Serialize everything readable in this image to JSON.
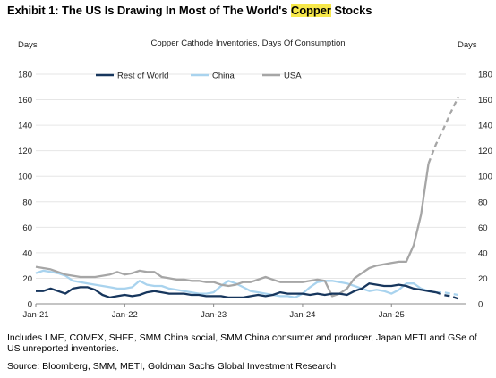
{
  "title_prefix": "Exhibit 1: The US Is Drawing In Most of The World's ",
  "title_highlight": "Copper",
  "title_suffix": " Stocks",
  "footnote": "Includes LME, COMEX, SHFE, SMM China social, SMM China consumer and producer, Japan METI and GSe of US unreported inventories.",
  "source": "Source: Bloomberg, SMM, METI, Goldman Sachs Global Investment Research",
  "colors": {
    "rest_of_world": "#17365d",
    "china": "#a9d3ee",
    "usa": "#a6a6a6"
  },
  "chart_data": {
    "type": "line",
    "subtitle": "Copper Cathode Inventories, Days Of Consumption",
    "ylabel_left": "Days",
    "ylabel_right": "Days",
    "ylim": [
      0,
      180
    ],
    "yticks": [
      "0",
      "20",
      "40",
      "60",
      "80",
      "100",
      "120",
      "140",
      "160",
      "180"
    ],
    "xticks": [
      "Jan-21",
      "Jan-22",
      "Jan-23",
      "Jan-24",
      "Jan-25"
    ],
    "legend_position": "top",
    "series": [
      {
        "name": "Rest of World",
        "values": [
          [
            "2021-01",
            10
          ],
          [
            "2021-02",
            10
          ],
          [
            "2021-03",
            12
          ],
          [
            "2021-04",
            10
          ],
          [
            "2021-05",
            8
          ],
          [
            "2021-06",
            12
          ],
          [
            "2021-07",
            13
          ],
          [
            "2021-08",
            13
          ],
          [
            "2021-09",
            11
          ],
          [
            "2021-10",
            7
          ],
          [
            "2021-11",
            5
          ],
          [
            "2021-12",
            6
          ],
          [
            "2022-01",
            7
          ],
          [
            "2022-02",
            6
          ],
          [
            "2022-03",
            7
          ],
          [
            "2022-04",
            9
          ],
          [
            "2022-05",
            10
          ],
          [
            "2022-06",
            9
          ],
          [
            "2022-07",
            8
          ],
          [
            "2022-08",
            8
          ],
          [
            "2022-09",
            8
          ],
          [
            "2022-10",
            7
          ],
          [
            "2022-11",
            7
          ],
          [
            "2022-12",
            6
          ],
          [
            "2023-01",
            6
          ],
          [
            "2023-02",
            6
          ],
          [
            "2023-03",
            5
          ],
          [
            "2023-04",
            5
          ],
          [
            "2023-05",
            5
          ],
          [
            "2023-06",
            6
          ],
          [
            "2023-07",
            7
          ],
          [
            "2023-08",
            6
          ],
          [
            "2023-09",
            7
          ],
          [
            "2023-10",
            9
          ],
          [
            "2023-11",
            8
          ],
          [
            "2023-12",
            8
          ],
          [
            "2024-01",
            8
          ],
          [
            "2024-02",
            7
          ],
          [
            "2024-03",
            8
          ],
          [
            "2024-04",
            7
          ],
          [
            "2024-05",
            8
          ],
          [
            "2024-06",
            8
          ],
          [
            "2024-07",
            7
          ],
          [
            "2024-08",
            10
          ],
          [
            "2024-09",
            12
          ],
          [
            "2024-10",
            16
          ],
          [
            "2024-11",
            15
          ],
          [
            "2024-12",
            14
          ],
          [
            "2025-01",
            14
          ],
          [
            "2025-02",
            15
          ],
          [
            "2025-03",
            14
          ],
          [
            "2025-04",
            12
          ],
          [
            "2025-05",
            11
          ],
          [
            "2025-06",
            10
          ],
          [
            "2025-07",
            9
          ]
        ],
        "projection": [
          [
            "2025-07",
            9
          ],
          [
            "2025-08",
            7
          ],
          [
            "2025-09",
            6
          ],
          [
            "2025-10",
            4
          ]
        ]
      },
      {
        "name": "China",
        "values": [
          [
            "2021-01",
            24
          ],
          [
            "2021-02",
            26
          ],
          [
            "2021-03",
            25
          ],
          [
            "2021-04",
            24
          ],
          [
            "2021-05",
            22
          ],
          [
            "2021-06",
            18
          ],
          [
            "2021-07",
            17
          ],
          [
            "2021-08",
            16
          ],
          [
            "2021-09",
            15
          ],
          [
            "2021-10",
            14
          ],
          [
            "2021-11",
            13
          ],
          [
            "2021-12",
            12
          ],
          [
            "2022-01",
            12
          ],
          [
            "2022-02",
            13
          ],
          [
            "2022-03",
            18
          ],
          [
            "2022-04",
            15
          ],
          [
            "2022-05",
            14
          ],
          [
            "2022-06",
            14
          ],
          [
            "2022-07",
            12
          ],
          [
            "2022-08",
            11
          ],
          [
            "2022-09",
            10
          ],
          [
            "2022-10",
            9
          ],
          [
            "2022-11",
            8
          ],
          [
            "2022-12",
            8
          ],
          [
            "2023-01",
            9
          ],
          [
            "2023-02",
            14
          ],
          [
            "2023-03",
            18
          ],
          [
            "2023-04",
            16
          ],
          [
            "2023-05",
            13
          ],
          [
            "2023-06",
            10
          ],
          [
            "2023-07",
            9
          ],
          [
            "2023-08",
            8
          ],
          [
            "2023-09",
            7
          ],
          [
            "2023-10",
            6
          ],
          [
            "2023-11",
            6
          ],
          [
            "2023-12",
            5
          ],
          [
            "2024-01",
            8
          ],
          [
            "2024-02",
            13
          ],
          [
            "2024-03",
            17
          ],
          [
            "2024-04",
            18
          ],
          [
            "2024-05",
            18
          ],
          [
            "2024-06",
            17
          ],
          [
            "2024-07",
            16
          ],
          [
            "2024-08",
            14
          ],
          [
            "2024-09",
            12
          ],
          [
            "2024-10",
            10
          ],
          [
            "2024-11",
            11
          ],
          [
            "2024-12",
            10
          ],
          [
            "2025-01",
            8
          ],
          [
            "2025-02",
            11
          ],
          [
            "2025-03",
            16
          ],
          [
            "2025-04",
            16
          ],
          [
            "2025-05",
            12
          ],
          [
            "2025-06",
            10
          ],
          [
            "2025-07",
            9
          ]
        ],
        "projection": [
          [
            "2025-07",
            9
          ],
          [
            "2025-08",
            9
          ],
          [
            "2025-09",
            8
          ],
          [
            "2025-10",
            7
          ]
        ]
      },
      {
        "name": "USA",
        "values": [
          [
            "2021-01",
            29
          ],
          [
            "2021-02",
            28
          ],
          [
            "2021-03",
            27
          ],
          [
            "2021-04",
            25
          ],
          [
            "2021-05",
            23
          ],
          [
            "2021-06",
            22
          ],
          [
            "2021-07",
            21
          ],
          [
            "2021-08",
            21
          ],
          [
            "2021-09",
            21
          ],
          [
            "2021-10",
            22
          ],
          [
            "2021-11",
            23
          ],
          [
            "2021-12",
            25
          ],
          [
            "2022-01",
            23
          ],
          [
            "2022-02",
            24
          ],
          [
            "2022-03",
            26
          ],
          [
            "2022-04",
            25
          ],
          [
            "2022-05",
            25
          ],
          [
            "2022-06",
            21
          ],
          [
            "2022-07",
            20
          ],
          [
            "2022-08",
            19
          ],
          [
            "2022-09",
            19
          ],
          [
            "2022-10",
            18
          ],
          [
            "2022-11",
            18
          ],
          [
            "2022-12",
            17
          ],
          [
            "2023-01",
            17
          ],
          [
            "2023-02",
            15
          ],
          [
            "2023-03",
            14
          ],
          [
            "2023-04",
            15
          ],
          [
            "2023-05",
            17
          ],
          [
            "2023-06",
            17
          ],
          [
            "2023-07",
            19
          ],
          [
            "2023-08",
            21
          ],
          [
            "2023-09",
            19
          ],
          [
            "2023-10",
            17
          ],
          [
            "2023-11",
            17
          ],
          [
            "2023-12",
            17
          ],
          [
            "2024-01",
            17
          ],
          [
            "2024-02",
            18
          ],
          [
            "2024-03",
            19
          ],
          [
            "2024-04",
            18
          ],
          [
            "2024-05",
            6
          ],
          [
            "2024-06",
            8
          ],
          [
            "2024-07",
            12
          ],
          [
            "2024-08",
            20
          ],
          [
            "2024-09",
            24
          ],
          [
            "2024-10",
            28
          ],
          [
            "2024-11",
            30
          ],
          [
            "2024-12",
            31
          ],
          [
            "2025-01",
            32
          ],
          [
            "2025-02",
            33
          ],
          [
            "2025-03",
            33
          ],
          [
            "2025-04",
            46
          ],
          [
            "2025-05",
            70
          ],
          [
            "2025-06",
            110
          ]
        ],
        "projection": [
          [
            "2025-06",
            110
          ],
          [
            "2025-07",
            125
          ],
          [
            "2025-08",
            137
          ],
          [
            "2025-09",
            150
          ],
          [
            "2025-10",
            162
          ]
        ]
      }
    ]
  }
}
